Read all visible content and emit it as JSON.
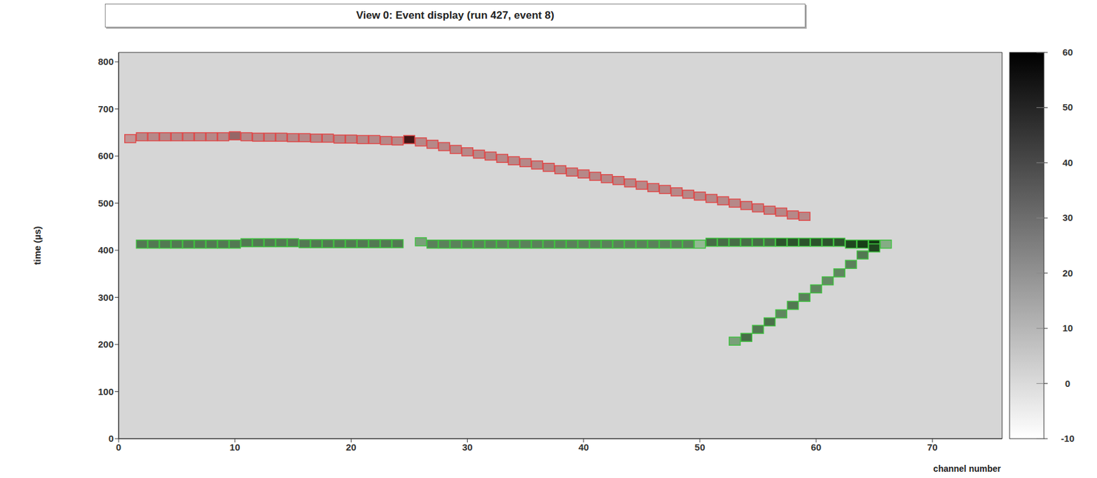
{
  "chart_data": {
    "type": "scatter",
    "title": "View 0: Event display (run 427, event 8)",
    "x_label": "channel number",
    "y_label": "time (µs)",
    "xlim": [
      0,
      76
    ],
    "xticks": [
      0,
      10,
      20,
      30,
      40,
      50,
      60,
      70
    ],
    "ylim": [
      0,
      820
    ],
    "yticks": [
      0,
      100,
      200,
      300,
      400,
      500,
      600,
      700,
      800
    ],
    "marker": "square",
    "grid": false,
    "series": [
      {
        "color": "#e04848",
        "x": [
          1,
          2,
          3,
          4,
          5,
          6,
          7,
          8,
          9,
          10,
          11,
          12,
          13,
          14,
          15,
          16,
          17,
          18,
          19,
          20,
          21,
          22,
          23,
          24,
          25,
          26,
          27,
          28,
          29,
          30,
          31,
          32,
          33,
          34,
          35,
          36,
          37,
          38,
          39,
          40,
          41,
          42,
          43,
          44,
          45,
          46,
          47,
          48,
          49,
          50,
          51,
          52,
          53,
          54,
          55,
          56,
          57,
          58,
          59
        ],
        "y": [
          637,
          641,
          641,
          641,
          641,
          641,
          641,
          641,
          641,
          643,
          641,
          640,
          640,
          640,
          639,
          639,
          638,
          638,
          636,
          636,
          635,
          635,
          633,
          632,
          635,
          630,
          625,
          620,
          614,
          609,
          604,
          600,
          595,
          590,
          586,
          581,
          576,
          571,
          566,
          562,
          557,
          552,
          548,
          543,
          538,
          533,
          529,
          524,
          519,
          515,
          510,
          505,
          500,
          495,
          490,
          485,
          481,
          475,
          472
        ],
        "charge": [
          10,
          15,
          15,
          15,
          15,
          15,
          15,
          15,
          15,
          28,
          15,
          15,
          15,
          15,
          15,
          15,
          15,
          15,
          15,
          15,
          15,
          15,
          15,
          15,
          60,
          15,
          15,
          15,
          15,
          15,
          15,
          15,
          15,
          15,
          15,
          15,
          15,
          15,
          15,
          15,
          15,
          15,
          15,
          15,
          15,
          15,
          15,
          15,
          15,
          15,
          15,
          15,
          15,
          15,
          15,
          15,
          15,
          15,
          15
        ]
      },
      {
        "color": "#40c040",
        "x": [
          2,
          3,
          4,
          5,
          6,
          7,
          8,
          9,
          10,
          11,
          12,
          13,
          14,
          15,
          16,
          17,
          18,
          19,
          20,
          21,
          22,
          23,
          24,
          26,
          27,
          28,
          29,
          30,
          31,
          32,
          33,
          34,
          35,
          36,
          37,
          38,
          39,
          40,
          41,
          42,
          43,
          44,
          45,
          46,
          47,
          48,
          49,
          50,
          51,
          52,
          53,
          54,
          55,
          56,
          57,
          58,
          59,
          60,
          61,
          62,
          63,
          64,
          65,
          66
        ],
        "y": [
          413,
          413,
          413,
          413,
          413,
          413,
          413,
          413,
          413,
          416,
          416,
          416,
          416,
          416,
          414,
          414,
          414,
          414,
          414,
          414,
          414,
          414,
          414,
          418,
          413,
          413,
          413,
          413,
          413,
          413,
          413,
          413,
          413,
          413,
          413,
          413,
          413,
          413,
          413,
          413,
          413,
          413,
          413,
          413,
          413,
          413,
          413,
          413,
          417,
          417,
          417,
          417,
          417,
          417,
          417,
          417,
          417,
          417,
          417,
          417,
          413,
          413,
          413,
          413
        ],
        "charge": [
          35,
          35,
          35,
          35,
          35,
          35,
          35,
          35,
          35,
          35,
          35,
          35,
          35,
          35,
          35,
          35,
          35,
          35,
          35,
          35,
          35,
          35,
          35,
          20,
          32,
          32,
          32,
          32,
          32,
          32,
          32,
          32,
          32,
          32,
          32,
          32,
          32,
          32,
          32,
          32,
          32,
          32,
          32,
          32,
          32,
          32,
          32,
          10,
          40,
          40,
          40,
          40,
          40,
          40,
          50,
          50,
          50,
          50,
          50,
          50,
          55,
          58,
          60,
          15
        ]
      },
      {
        "color": "#40c040",
        "x": [
          53,
          54,
          55,
          56,
          57,
          58,
          59,
          60,
          61,
          62,
          63,
          64,
          65
        ],
        "y": [
          207,
          215,
          232,
          248,
          265,
          283,
          300,
          318,
          335,
          352,
          370,
          390,
          405
        ],
        "charge": [
          20,
          40,
          35,
          38,
          30,
          35,
          32,
          30,
          28,
          30,
          32,
          35,
          55
        ]
      }
    ],
    "colorbar": {
      "range": [
        -10,
        60
      ],
      "ticks": [
        -10,
        0,
        10,
        20,
        30,
        40,
        50,
        60
      ]
    }
  }
}
